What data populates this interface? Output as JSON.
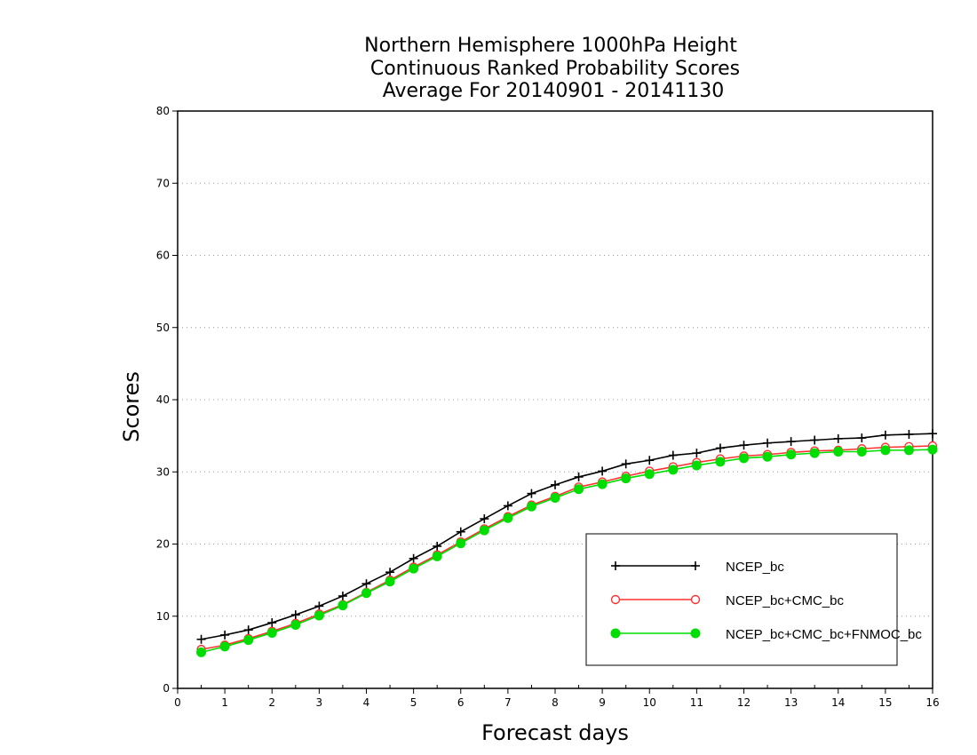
{
  "chart_data": {
    "type": "line",
    "title": [
      "Northern Hemisphere 1000hPa Height",
      "Continuous Ranked Probability Scores",
      "Average For 20140901 - 20141130"
    ],
    "xlabel": "Forecast days",
    "ylabel": "Scores",
    "xlim": [
      0,
      16
    ],
    "ylim": [
      0,
      80
    ],
    "xticks": [
      0,
      1,
      2,
      3,
      4,
      5,
      6,
      7,
      8,
      9,
      10,
      11,
      12,
      13,
      14,
      15,
      16
    ],
    "yticks": [
      0,
      10,
      20,
      30,
      40,
      50,
      60,
      70,
      80
    ],
    "grid": "horizontal dotted",
    "legend_position": "bottom-right",
    "x": [
      0.5,
      1,
      1.5,
      2,
      2.5,
      3,
      3.5,
      4,
      4.5,
      5,
      5.5,
      6,
      6.5,
      7,
      7.5,
      8,
      8.5,
      9,
      9.5,
      10,
      10.5,
      11,
      11.5,
      12,
      12.5,
      13,
      13.5,
      14,
      14.5,
      15,
      15.5,
      16
    ],
    "series": [
      {
        "name": "NCEP_bc",
        "color": "#000000",
        "marker": "plus",
        "values": [
          6.8,
          7.4,
          8.1,
          9.1,
          10.2,
          11.4,
          12.8,
          14.5,
          16.1,
          18.0,
          19.7,
          21.7,
          23.5,
          25.3,
          27.0,
          28.2,
          29.3,
          30.1,
          31.1,
          31.6,
          32.3,
          32.6,
          33.3,
          33.7,
          34.0,
          34.2,
          34.4,
          34.6,
          34.7,
          35.1,
          35.2,
          35.3
        ]
      },
      {
        "name": "NCEP_bc+CMC_bc",
        "color": "#ff3030",
        "marker": "open-circle",
        "values": [
          5.4,
          6.0,
          6.9,
          7.9,
          9.0,
          10.3,
          11.6,
          13.3,
          15.0,
          16.8,
          18.5,
          20.3,
          22.1,
          23.8,
          25.4,
          26.6,
          27.9,
          28.6,
          29.4,
          30.1,
          30.7,
          31.3,
          31.8,
          32.2,
          32.4,
          32.7,
          32.9,
          33.0,
          33.2,
          33.4,
          33.5,
          33.6
        ]
      },
      {
        "name": "NCEP_bc+CMC_bc+FNMOC_bc",
        "color": "#00dd00",
        "marker": "filled-circle",
        "values": [
          5.0,
          5.8,
          6.7,
          7.7,
          8.8,
          10.1,
          11.5,
          13.2,
          14.8,
          16.6,
          18.3,
          20.1,
          21.9,
          23.6,
          25.2,
          26.4,
          27.6,
          28.3,
          29.1,
          29.7,
          30.3,
          30.9,
          31.4,
          31.9,
          32.1,
          32.4,
          32.6,
          32.8,
          32.8,
          33.0,
          33.0,
          33.1
        ]
      }
    ]
  }
}
